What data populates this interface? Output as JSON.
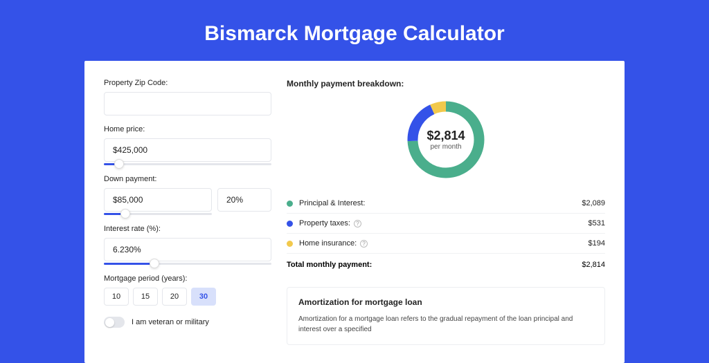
{
  "page": {
    "title": "Bismarck Mortgage Calculator",
    "background_color": "#3452e8"
  },
  "form": {
    "zip": {
      "label": "Property Zip Code:",
      "value": ""
    },
    "price": {
      "label": "Home price:",
      "value": "$425,000",
      "slider_pct": 9
    },
    "down": {
      "label": "Down payment:",
      "value": "$85,000",
      "pct": "20%",
      "slider_pct": 20
    },
    "rate": {
      "label": "Interest rate (%):",
      "value": "6.230%",
      "slider_pct": 30
    },
    "period": {
      "label": "Mortgage period (years):",
      "options": [
        "10",
        "15",
        "20",
        "30"
      ],
      "active_index": 3
    },
    "veteran": {
      "label": "I am veteran or military",
      "checked": false
    }
  },
  "breakdown": {
    "title": "Monthly payment breakdown:",
    "center_amount": "$2,814",
    "center_sub": "per month",
    "donut": {
      "slices": [
        {
          "value": 2089,
          "color": "#4aae8c"
        },
        {
          "value": 531,
          "color": "#3452e8"
        },
        {
          "value": 194,
          "color": "#f2c94c"
        }
      ],
      "stroke_width": 15
    },
    "rows": [
      {
        "label": "Principal & Interest:",
        "value": "$2,089",
        "color": "#4aae8c",
        "help": false
      },
      {
        "label": "Property taxes:",
        "value": "$531",
        "color": "#3452e8",
        "help": true
      },
      {
        "label": "Home insurance:",
        "value": "$194",
        "color": "#f2c94c",
        "help": true
      }
    ],
    "total": {
      "label": "Total monthly payment:",
      "value": "$2,814"
    }
  },
  "amortization": {
    "title": "Amortization for mortgage loan",
    "text": "Amortization for a mortgage loan refers to the gradual repayment of the loan principal and interest over a specified"
  }
}
